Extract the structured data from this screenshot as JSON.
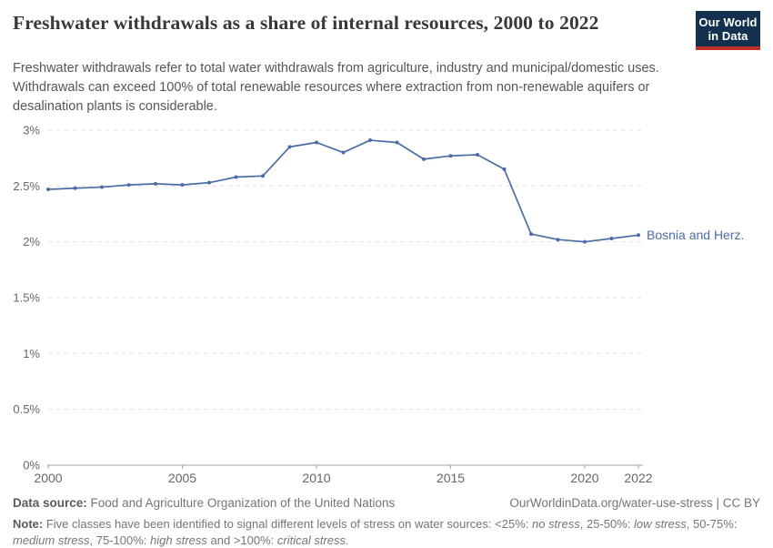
{
  "header": {
    "title": "Freshwater withdrawals as a share of internal resources, 2000 to 2022",
    "subtitle": "Freshwater withdrawals refer to total water withdrawals from agriculture, industry and municipal/domestic uses. Withdrawals can exceed 100% of total renewable resources where extraction from non-renewable aquifers or desalination plants is considerable."
  },
  "logo": {
    "line1": "Our World",
    "line2": "in Data",
    "bg_color": "#14304f",
    "accent_color": "#c2302a"
  },
  "chart_data": {
    "type": "line",
    "title": "Freshwater withdrawals as a share of internal resources, 2000 to 2022",
    "x": [
      2000,
      2001,
      2002,
      2003,
      2004,
      2005,
      2006,
      2007,
      2008,
      2009,
      2010,
      2011,
      2012,
      2013,
      2014,
      2015,
      2016,
      2017,
      2018,
      2019,
      2020,
      2021,
      2022
    ],
    "series": [
      {
        "name": "Bosnia and Herz.",
        "color": "#4C6CA8",
        "values": [
          2.47,
          2.48,
          2.49,
          2.51,
          2.52,
          2.51,
          2.53,
          2.58,
          2.59,
          2.85,
          2.89,
          2.8,
          2.91,
          2.89,
          2.74,
          2.77,
          2.78,
          2.65,
          2.07,
          2.02,
          2.0,
          2.03,
          2.06
        ]
      }
    ],
    "xlabel": "",
    "ylabel": "",
    "xlim": [
      2000,
      2022
    ],
    "ylim": [
      0,
      3
    ],
    "yticks": [
      {
        "v": 0,
        "label": "0%"
      },
      {
        "v": 0.5,
        "label": "0.5%"
      },
      {
        "v": 1,
        "label": "1%"
      },
      {
        "v": 1.5,
        "label": "1.5%"
      },
      {
        "v": 2,
        "label": "2%"
      },
      {
        "v": 2.5,
        "label": "2.5%"
      },
      {
        "v": 3,
        "label": "3%"
      }
    ],
    "xticks": [
      2000,
      2005,
      2010,
      2015,
      2020,
      2022
    ],
    "grid": true,
    "grid_style": "dashed",
    "legend_position": "end-of-line",
    "colors": {
      "gridline": "#e2e2e2",
      "axis": "#a5a5a5",
      "tick_label": "#666666"
    }
  },
  "footer": {
    "data_source_label": "Data source:",
    "data_source": "Food and Agriculture Organization of the United Nations",
    "citation": "OurWorldinData.org/water-use-stress | CC BY",
    "note_label": "Note:",
    "note_segments": [
      {
        "text": "Five classes have been identified to signal different levels of stress on water sources: <25%: ",
        "italic": false
      },
      {
        "text": "no stress",
        "italic": true
      },
      {
        "text": ", 25-50%: ",
        "italic": false
      },
      {
        "text": "low stress",
        "italic": true
      },
      {
        "text": ", 50-75%: ",
        "italic": false
      },
      {
        "text": "medium stress",
        "italic": true
      },
      {
        "text": ", 75-100%: ",
        "italic": false
      },
      {
        "text": "high stress",
        "italic": true
      },
      {
        "text": " and >100%: ",
        "italic": false
      },
      {
        "text": "critical stress",
        "italic": true
      },
      {
        "text": ".",
        "italic": false
      }
    ]
  }
}
